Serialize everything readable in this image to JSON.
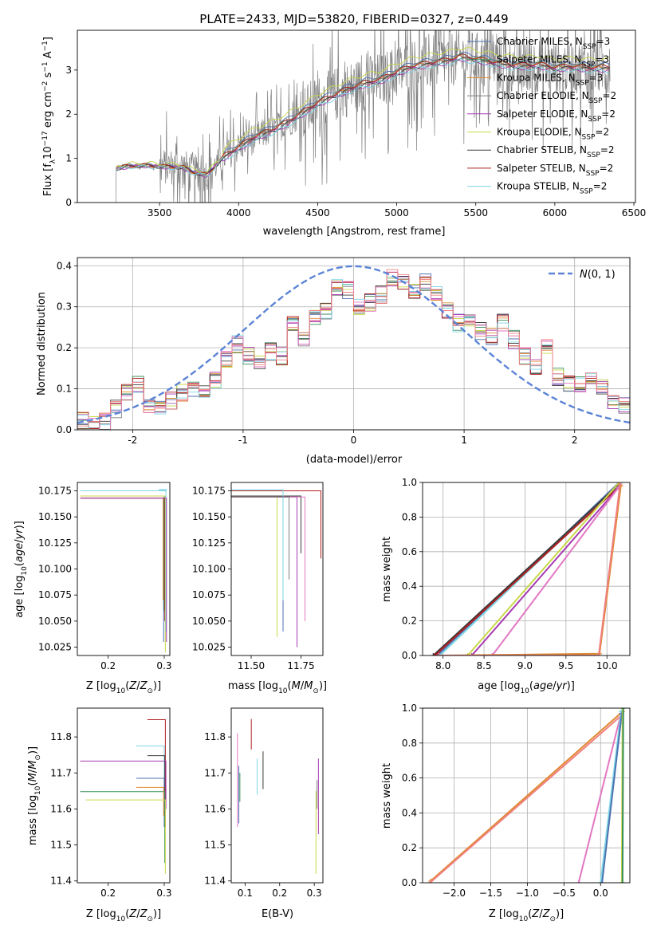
{
  "figure_title": "PLATE=2433, MJD=53820, FIBERID=0327, z=0.449",
  "colors": {
    "chabrier_miles": "#4c72b0",
    "salpeter_miles": "#3a8f5a",
    "kroupa_miles": "#e08a33",
    "chabrier_elodie": "#7f7f7f",
    "salpeter_elodie": "#a63ab3",
    "kroupa_elodie": "#c8d84a",
    "chabrier_stelib": "#3a3a3a",
    "salpeter_stelib": "#b21f1f",
    "kroupa_stelib": "#7ed6e6",
    "normal_curve": "#5b84d6",
    "pink": "#e377c2",
    "salmon": "#f08080",
    "grid": "#b0b0b0",
    "data_spectrum": "#808080"
  },
  "chart_data": [
    {
      "id": "spectrum",
      "type": "line",
      "title": "PLATE=2433, MJD=53820, FIBERID=0327, z=0.449",
      "xlabel": "wavelength [Angstrom, rest frame]",
      "ylabel": "Flux [f$_\\lambda$ 10$^{-17}$ erg cm$^{-2}$ s$^{-1}$ A$^{-1}$]",
      "ylabel_parts": [
        "Flux [f",
        "λ",
        "10",
        "−17",
        " erg cm",
        "−2",
        " s",
        "−1",
        " A",
        "−1",
        "]"
      ],
      "xlim": [
        2980,
        6510
      ],
      "ylim": [
        0,
        3.9
      ],
      "xticks": [
        3500,
        4000,
        4500,
        5000,
        5500,
        6000,
        6500
      ],
      "yticks": [
        0,
        1,
        2,
        3
      ],
      "grid": false,
      "legend_position": "right",
      "legend": [
        {
          "label_main": "Chabrier MILES, N",
          "label_sub": "SSP",
          "label_end": "=3",
          "color": "#4c72b0"
        },
        {
          "label_main": "Salpeter MILES, N",
          "label_sub": "SSP",
          "label_end": "=3",
          "color": "#3a8f5a"
        },
        {
          "label_main": "Kroupa MILES, N",
          "label_sub": "SSP",
          "label_end": "=3",
          "color": "#e08a33"
        },
        {
          "label_main": "Chabrier ELODIE, N",
          "label_sub": "SSP",
          "label_end": "=2",
          "color": "#7f7f7f"
        },
        {
          "label_main": "Salpeter ELODIE, N",
          "label_sub": "SSP",
          "label_end": "=2",
          "color": "#a63ab3"
        },
        {
          "label_main": "Kroupa ELODIE, N",
          "label_sub": "SSP",
          "label_end": "=2",
          "color": "#c8d84a"
        },
        {
          "label_main": "Chabrier STELIB, N",
          "label_sub": "SSP",
          "label_end": "=2",
          "color": "#3a3a3a"
        },
        {
          "label_main": "Salpeter STELIB, N",
          "label_sub": "SSP",
          "label_end": "=2",
          "color": "#b21f1f"
        },
        {
          "label_main": "Kroupa STELIB, N",
          "label_sub": "SSP",
          "label_end": "=2",
          "color": "#7ed6e6"
        }
      ],
      "continuum": {
        "x": [
          3220,
          3230,
          3300,
          3400,
          3500,
          3650,
          3700,
          3800,
          3900,
          4000,
          4100,
          4200,
          4300,
          4400,
          4500,
          4600,
          4700,
          4800,
          4900,
          5000,
          5100,
          5200,
          5300,
          5400,
          5500,
          5600,
          5700,
          5800,
          5900,
          6000,
          6100,
          6200,
          6350
        ],
        "y": [
          0.72,
          0.78,
          0.82,
          0.84,
          0.82,
          0.8,
          0.7,
          0.62,
          1.02,
          1.25,
          1.48,
          1.62,
          1.8,
          2.02,
          2.25,
          2.42,
          2.58,
          2.7,
          2.78,
          2.95,
          3.08,
          3.15,
          3.2,
          3.3,
          3.25,
          3.18,
          3.12,
          3.1,
          3.12,
          3.05,
          3.08,
          3.05,
          3.05
        ]
      },
      "model_offsets": [
        0.08,
        0.04,
        0.0,
        0.02,
        -0.06,
        0.2,
        -0.03,
        0.03,
        -0.08
      ],
      "data_noise_range": [
        3220,
        6350
      ]
    },
    {
      "id": "residuals",
      "type": "step",
      "xlabel": "(data-model)/error",
      "ylabel": "Normed distribution",
      "xlim": [
        -2.5,
        2.5
      ],
      "ylim": [
        0,
        0.42
      ],
      "xticks": [
        -2,
        -1,
        0,
        1,
        2
      ],
      "yticks": [
        0.0,
        0.1,
        0.2,
        0.3,
        0.4
      ],
      "ytick_labels": [
        "0.0",
        "0.1",
        "0.2",
        "0.3",
        "0.4"
      ],
      "grid": true,
      "legend_position": "top-right",
      "legend_label": "N(0,1)",
      "bin_edges_start": -2.5,
      "bin_width": 0.1,
      "base_hist": [
        0.02,
        0.01,
        0.02,
        0.05,
        0.09,
        0.11,
        0.06,
        0.05,
        0.07,
        0.09,
        0.1,
        0.09,
        0.12,
        0.17,
        0.21,
        0.18,
        0.16,
        0.19,
        0.18,
        0.26,
        0.22,
        0.27,
        0.29,
        0.35,
        0.34,
        0.3,
        0.31,
        0.33,
        0.37,
        0.36,
        0.34,
        0.36,
        0.33,
        0.29,
        0.26,
        0.26,
        0.24,
        0.23,
        0.26,
        0.22,
        0.18,
        0.15,
        0.2,
        0.13,
        0.11,
        0.11,
        0.13,
        0.1,
        0.07,
        0.06
      ]
    },
    {
      "id": "age_vs_Z",
      "type": "step",
      "xlabel_main": "Z [log",
      "xlabel_sub": "10",
      "xlabel_end": "(Z/Z",
      "xlabel_sun": "⊙",
      "xlabel_close": ")]",
      "ylabel": "age  [log10(age/yr)]",
      "xlim": [
        0.145,
        0.31
      ],
      "ylim": [
        10.017,
        10.183
      ],
      "xticks": [
        0.2,
        0.3
      ],
      "xtick_labels": [
        "0.2",
        "0.3"
      ],
      "yticks": [
        10.025,
        10.05,
        10.075,
        10.1,
        10.125,
        10.15,
        10.175
      ],
      "ytick_labels": [
        "10.025",
        "10.050",
        "10.075",
        "10.100",
        "10.125",
        "10.150",
        "10.175"
      ]
    },
    {
      "id": "age_vs_mass",
      "type": "step",
      "xlabel": "mass [log10(M/M⊙)]",
      "xlim": [
        11.4,
        11.86
      ],
      "ylim": [
        10.017,
        10.183
      ],
      "xticks": [
        11.5,
        11.75
      ],
      "xtick_labels": [
        "11.50",
        "11.75"
      ],
      "yticks": [
        10.025,
        10.05,
        10.075,
        10.1,
        10.125,
        10.15,
        10.175
      ],
      "ytick_labels": [
        "10.025",
        "10.050",
        "10.075",
        "10.100",
        "10.125",
        "10.150",
        "10.175"
      ]
    },
    {
      "id": "weight_vs_age",
      "type": "line",
      "xlabel": "age  [log10(age/yr)]",
      "ylabel": "mass weight",
      "xlim": [
        7.75,
        10.28
      ],
      "ylim": [
        0,
        1
      ],
      "xticks": [
        8.0,
        8.5,
        9.0,
        9.5,
        10.0
      ],
      "xtick_labels": [
        "8.0",
        "8.5",
        "9.0",
        "9.5",
        "10.0"
      ],
      "yticks": [
        0,
        0.2,
        0.4,
        0.6,
        0.8,
        1.0
      ],
      "ytick_labels": [
        "0.0",
        "0.2",
        "0.4",
        "0.6",
        "0.8",
        "1.0"
      ],
      "grid": true,
      "series": [
        {
          "color": "#7ed6e6",
          "x": [
            7.96,
            10.17
          ],
          "y": [
            0.0,
            1.0
          ]
        },
        {
          "color": "#4c72b0",
          "x": [
            7.93,
            10.15
          ],
          "y": [
            0.0,
            1.0
          ]
        },
        {
          "color": "#3a3a3a",
          "x": [
            7.88,
            10.15
          ],
          "y": [
            0.0,
            0.99
          ]
        },
        {
          "color": "#b21f1f",
          "x": [
            7.9,
            10.16
          ],
          "y": [
            0.0,
            0.98
          ]
        },
        {
          "color": "#c8d84a",
          "x": [
            8.3,
            10.15
          ],
          "y": [
            0.0,
            1.0
          ]
        },
        {
          "color": "#a63ab3",
          "x": [
            8.35,
            10.16
          ],
          "y": [
            0.0,
            0.98
          ]
        },
        {
          "color": "#e377c2",
          "x": [
            8.6,
            10.14
          ],
          "y": [
            0.0,
            0.97
          ]
        },
        {
          "color": "#e08a33",
          "x": [
            7.95,
            9.91,
            10.17
          ],
          "y": [
            0.0,
            0.01,
            0.98
          ]
        },
        {
          "color": "#f08080",
          "x": [
            7.95,
            9.9,
            10.16
          ],
          "y": [
            0.0,
            0.0,
            0.99
          ]
        }
      ]
    },
    {
      "id": "mass_vs_Z",
      "type": "step",
      "xlabel": "Z [log10(Z/Z⊙)]",
      "ylabel": "mass [log10(M/M⊙)]",
      "xlim": [
        0.145,
        0.31
      ],
      "ylim": [
        11.395,
        11.88
      ],
      "xticks": [
        0.2,
        0.3
      ],
      "xtick_labels": [
        "0.2",
        "0.3"
      ],
      "yticks": [
        11.4,
        11.5,
        11.6,
        11.7,
        11.8
      ],
      "ytick_labels": [
        "11.4",
        "11.5",
        "11.6",
        "11.7",
        "11.8"
      ]
    },
    {
      "id": "mass_vs_ebv",
      "type": "step",
      "xlabel": "E(B-V)",
      "xlim": [
        0.06,
        0.325
      ],
      "ylim": [
        11.395,
        11.88
      ],
      "xticks": [
        0.1,
        0.2,
        0.3
      ],
      "xtick_labels": [
        "0.1",
        "0.2",
        "0.3"
      ],
      "yticks": [
        11.4,
        11.5,
        11.6,
        11.7,
        11.8
      ],
      "ytick_labels": [
        "11.4",
        "11.5",
        "11.6",
        "11.7",
        "11.8"
      ]
    },
    {
      "id": "weight_vs_Z",
      "type": "line",
      "xlabel": "Z [log10(Z/Z⊙)]",
      "ylabel": "mass weight",
      "xlim": [
        -2.43,
        0.4
      ],
      "ylim": [
        0,
        1
      ],
      "xticks": [
        -2.0,
        -1.5,
        -1.0,
        -0.5,
        0.0
      ],
      "xtick_labels": [
        "−2.0",
        "−1.5",
        "−1.0",
        "−0.5",
        "0.0"
      ],
      "yticks": [
        0,
        0.2,
        0.4,
        0.6,
        0.8,
        1.0
      ],
      "ytick_labels": [
        "0.0",
        "0.2",
        "0.4",
        "0.6",
        "0.8",
        "1.0"
      ],
      "grid": true,
      "series": [
        {
          "color": "#e08a33",
          "x": [
            -2.32,
            0.3
          ],
          "y": [
            0.01,
            0.98
          ]
        },
        {
          "color": "#f08080",
          "x": [
            -2.33,
            0.29
          ],
          "y": [
            0.0,
            0.96
          ]
        },
        {
          "color": "#e377c2",
          "x": [
            -0.3,
            0.28
          ],
          "y": [
            0.0,
            0.97
          ]
        },
        {
          "color": "#7ed6e6",
          "x": [
            0.0,
            0.28
          ],
          "y": [
            0.0,
            0.98
          ]
        },
        {
          "color": "#4c72b0",
          "x": [
            0.02,
            0.29
          ],
          "y": [
            0.0,
            0.97
          ]
        },
        {
          "color": "#c8d84a",
          "x": [
            0.29,
            0.3
          ],
          "y": [
            0.0,
            1.0
          ]
        },
        {
          "color": "#3a8f5a",
          "x": [
            0.3,
            0.31
          ],
          "y": [
            0.0,
            1.0
          ]
        }
      ]
    }
  ]
}
